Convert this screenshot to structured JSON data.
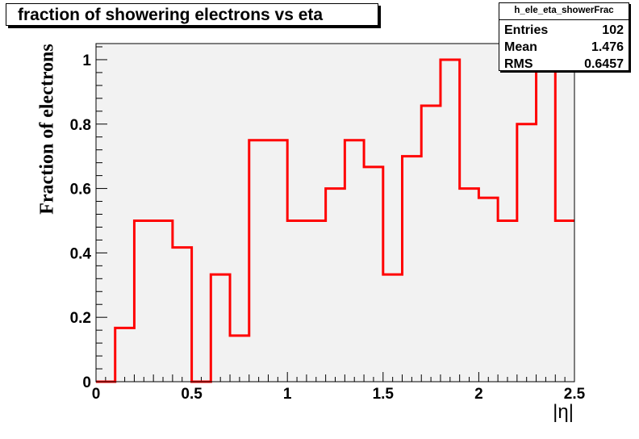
{
  "chart_data": {
    "type": "line",
    "style": "step",
    "title": "fraction of showering electrons vs eta",
    "xlabel": "|η|",
    "ylabel": "Fraction of electrons",
    "xlim": [
      0,
      2.5
    ],
    "ylim": [
      0,
      1.05
    ],
    "x_ticks": [
      "0",
      "0.5",
      "1",
      "1.5",
      "2",
      "2.5"
    ],
    "x_tick_values": [
      0,
      0.5,
      1,
      1.5,
      2,
      2.5
    ],
    "y_ticks": [
      "0",
      "0.2",
      "0.4",
      "0.6",
      "0.8",
      "1"
    ],
    "y_tick_values": [
      0,
      0.2,
      0.4,
      0.6,
      0.8,
      1
    ],
    "bin_edges": [
      0,
      0.1,
      0.2,
      0.3,
      0.4,
      0.5,
      0.6,
      0.7,
      0.8,
      0.9,
      1.0,
      1.1,
      1.2,
      1.3,
      1.4,
      1.5,
      1.6,
      1.7,
      1.8,
      1.9,
      2.0,
      2.1,
      2.2,
      2.3,
      2.4,
      2.5
    ],
    "values": [
      0,
      0.167,
      0.5,
      0.5,
      0.417,
      0,
      0.333,
      0.143,
      0.75,
      0.75,
      0.5,
      0.5,
      0.6,
      0.75,
      0.667,
      0.333,
      0.7,
      0.857,
      1.0,
      0.6,
      0.571,
      0.5,
      0.8,
      1.0,
      0.5
    ],
    "line_color": "#ff0000",
    "frame_fill": "#f2f2f2",
    "grid": false,
    "legend": "none"
  },
  "stats": {
    "name": "h_ele_eta_showerFrac",
    "entries_label": "Entries",
    "entries_value": "102",
    "mean_label": "Mean",
    "mean_value": "1.476",
    "rms_label": "RMS",
    "rms_value": "0.6457"
  }
}
